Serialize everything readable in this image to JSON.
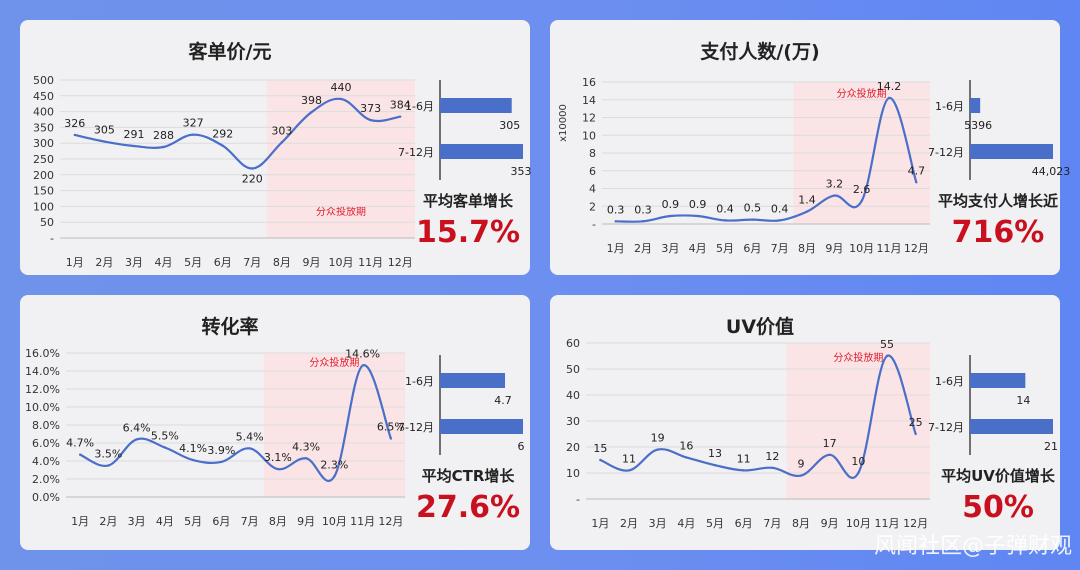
{
  "months": [
    "1月",
    "2月",
    "3月",
    "4月",
    "5月",
    "6月",
    "7月",
    "8月",
    "9月",
    "10月",
    "11月",
    "12月"
  ],
  "highlight_label": "分众投放期",
  "colors": {
    "line": "#4a6fc9",
    "bar": "#4a6fc9",
    "highlight_bg": "#fbe4e6",
    "highlight_text": "#e01d2b",
    "accent": "#c8101f"
  },
  "chart_data": [
    {
      "type": "line",
      "title": "客单价/元",
      "y_unit": "",
      "x": [
        "1月",
        "2月",
        "3月",
        "4月",
        "5月",
        "6月",
        "7月",
        "8月",
        "9月",
        "10月",
        "11月",
        "12月"
      ],
      "values": [
        326,
        305,
        291,
        288,
        327,
        292,
        220,
        303,
        398,
        440,
        373,
        384
      ],
      "data_labels": [
        "326",
        "305",
        "291",
        "288",
        "327",
        "292",
        "220",
        "303",
        "398",
        "440",
        "373",
        "384"
      ],
      "ylim": [
        0,
        500
      ],
      "ytick_labels": [
        "-",
        "50",
        "100",
        "150",
        "200",
        "250",
        "300",
        "350",
        "400",
        "450",
        "500"
      ],
      "highlight_months": [
        "8月",
        "12月"
      ],
      "comparison": {
        "type": "bar",
        "categories": [
          "1-6月",
          "7-12月"
        ],
        "values": [
          305,
          353
        ],
        "labels": [
          "305",
          "353"
        ]
      },
      "summary_label": "平均客单增长",
      "summary_value": "15.7%"
    },
    {
      "type": "line",
      "title": "支付人数/(万)",
      "y_unit": "x10000",
      "x": [
        "1月",
        "2月",
        "3月",
        "4月",
        "5月",
        "6月",
        "7月",
        "8月",
        "9月",
        "10月",
        "11月",
        "12月"
      ],
      "values": [
        0.3,
        0.3,
        0.9,
        0.9,
        0.4,
        0.5,
        0.4,
        1.4,
        3.2,
        2.6,
        14.2,
        4.7
      ],
      "data_labels": [
        "0.3",
        "0.3",
        "0.9",
        "0.9",
        "0.4",
        "0.5",
        "0.4",
        "1.4",
        "3.2",
        "2.6",
        "14.2",
        "4.7"
      ],
      "ylim": [
        0,
        16
      ],
      "ytick_labels": [
        "-",
        "2",
        "4",
        "6",
        "8",
        "10",
        "12",
        "14",
        "16"
      ],
      "highlight_months": [
        "8月",
        "12月"
      ],
      "comparison": {
        "type": "bar",
        "categories": [
          "1-6月",
          "7-12月"
        ],
        "values": [
          5396,
          44023
        ],
        "labels": [
          "5396",
          "44,023"
        ]
      },
      "summary_label": "平均支付人增长近",
      "summary_value": "716%"
    },
    {
      "type": "line",
      "title": "转化率",
      "y_unit": "",
      "x": [
        "1月",
        "2月",
        "3月",
        "4月",
        "5月",
        "6月",
        "7月",
        "8月",
        "9月",
        "10月",
        "11月",
        "12月"
      ],
      "values": [
        4.7,
        3.5,
        6.4,
        5.5,
        4.1,
        3.9,
        5.4,
        3.1,
        4.3,
        2.3,
        14.6,
        6.5
      ],
      "data_labels": [
        "4.7%",
        "3.5%",
        "6.4%",
        "5.5%",
        "4.1%",
        "3.9%",
        "5.4%",
        "3.1%",
        "4.3%",
        "2.3%",
        "14.6%",
        "6.5%"
      ],
      "ylim": [
        0,
        16
      ],
      "ytick_labels": [
        "0.0%",
        "2.0%",
        "4.0%",
        "6.0%",
        "8.0%",
        "10.0%",
        "12.0%",
        "14.0%",
        "16.0%"
      ],
      "highlight_months": [
        "8月",
        "12月"
      ],
      "comparison": {
        "type": "bar",
        "categories": [
          "1-6月",
          "7-12月"
        ],
        "values": [
          4.7,
          6
        ],
        "labels": [
          "4.7",
          "6"
        ]
      },
      "summary_label": "平均CTR增长",
      "summary_value": "27.6%"
    },
    {
      "type": "line",
      "title": "UV价值",
      "y_unit": "",
      "x": [
        "1月",
        "2月",
        "3月",
        "4月",
        "5月",
        "6月",
        "7月",
        "8月",
        "9月",
        "10月",
        "11月",
        "12月"
      ],
      "values": [
        15,
        11,
        19,
        16,
        13,
        11,
        12,
        9,
        17,
        10,
        55,
        25
      ],
      "data_labels": [
        "15",
        "11",
        "19",
        "16",
        "13",
        "11",
        "12",
        "9",
        "17",
        "10",
        "55",
        "25"
      ],
      "ylim": [
        0,
        60
      ],
      "ytick_labels": [
        "-",
        "10",
        "20",
        "30",
        "40",
        "50",
        "60"
      ],
      "highlight_months": [
        "8月",
        "12月"
      ],
      "comparison": {
        "type": "bar",
        "categories": [
          "1-6月",
          "7-12月"
        ],
        "values": [
          14,
          21
        ],
        "labels": [
          "14",
          "21"
        ]
      },
      "summary_label": "平均UV价值增长",
      "summary_value": "50%"
    }
  ],
  "watermark": "风闻社区@子弹财观"
}
